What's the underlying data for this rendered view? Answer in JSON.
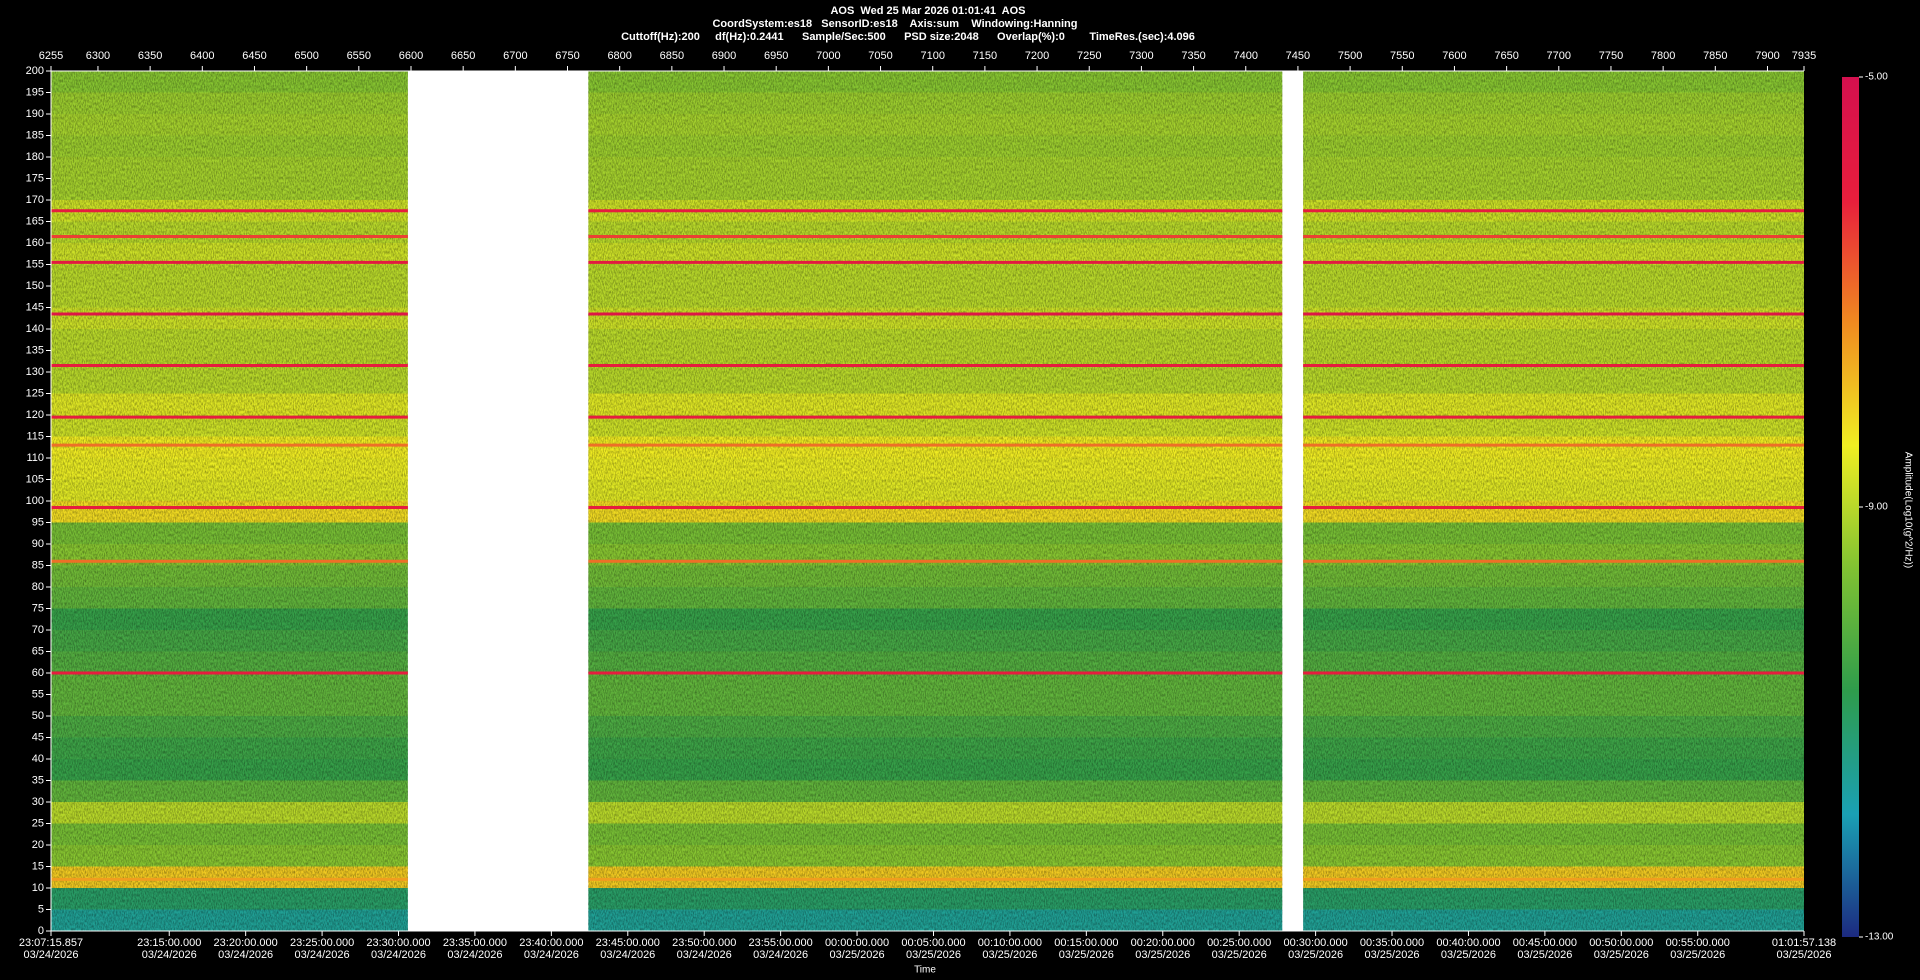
{
  "chart_data": {
    "type": "spectrogram",
    "title": "AOS  Wed 25 Mar 2026 01:01:41  AOS",
    "subtitle_lines": [
      "CoordSystem:es18   SensorID:es18    Axis:sum    Windowing:Hanning",
      "Cuttoff(Hz):200     df(Hz):0.2441      Sample/Sec:500      PSD size:2048      Overlap(%):0        TimeRes.(sec):4.096"
    ],
    "x2_label": "Time",
    "colorbar_label": "Amplitude(Log10(g^2/Hz))",
    "xlim": [
      6255,
      7935
    ],
    "xticks": [
      6255,
      6300,
      6350,
      6400,
      6450,
      6500,
      6550,
      6600,
      6650,
      6700,
      6750,
      6800,
      6850,
      6900,
      6950,
      7000,
      7050,
      7100,
      7150,
      7200,
      7250,
      7300,
      7350,
      7400,
      7450,
      7500,
      7550,
      7600,
      7650,
      7700,
      7750,
      7800,
      7850,
      7900,
      7935
    ],
    "ylim": [
      0,
      200
    ],
    "yticks": [
      0,
      5,
      10,
      15,
      20,
      25,
      30,
      35,
      40,
      45,
      50,
      55,
      60,
      65,
      70,
      75,
      80,
      85,
      90,
      95,
      100,
      105,
      110,
      115,
      120,
      125,
      130,
      135,
      140,
      145,
      150,
      155,
      160,
      165,
      170,
      175,
      180,
      185,
      190,
      195,
      200
    ],
    "time_ticks": [
      {
        "time": "23:07:15.857",
        "date": "03/24/2026"
      },
      {
        "time": "23:15:00.000",
        "date": "03/24/2026"
      },
      {
        "time": "23:20:00.000",
        "date": "03/24/2026"
      },
      {
        "time": "23:25:00.000",
        "date": "03/24/2026"
      },
      {
        "time": "23:30:00.000",
        "date": "03/24/2026"
      },
      {
        "time": "23:35:00.000",
        "date": "03/24/2026"
      },
      {
        "time": "23:40:00.000",
        "date": "03/24/2026"
      },
      {
        "time": "23:45:00.000",
        "date": "03/24/2026"
      },
      {
        "time": "23:50:00.000",
        "date": "03/24/2026"
      },
      {
        "time": "23:55:00.000",
        "date": "03/24/2026"
      },
      {
        "time": "00:00:00.000",
        "date": "03/25/2026"
      },
      {
        "time": "00:05:00.000",
        "date": "03/25/2026"
      },
      {
        "time": "00:10:00.000",
        "date": "03/25/2026"
      },
      {
        "time": "00:15:00.000",
        "date": "03/25/2026"
      },
      {
        "time": "00:20:00.000",
        "date": "03/25/2026"
      },
      {
        "time": "00:25:00.000",
        "date": "03/25/2026"
      },
      {
        "time": "00:30:00.000",
        "date": "03/25/2026"
      },
      {
        "time": "00:35:00.000",
        "date": "03/25/2026"
      },
      {
        "time": "00:40:00.000",
        "date": "03/25/2026"
      },
      {
        "time": "00:45:00.000",
        "date": "03/25/2026"
      },
      {
        "time": "00:50:00.000",
        "date": "03/25/2026"
      },
      {
        "time": "00:55:00.000",
        "date": "03/25/2026"
      },
      {
        "time": "01:01:57.138",
        "date": "03/25/2026"
      }
    ],
    "segments": [
      [
        6255,
        6597
      ],
      [
        6770,
        7435
      ],
      [
        7455,
        7935
      ]
    ],
    "bins": [
      0,
      5,
      10,
      15,
      20,
      25,
      30,
      35,
      40,
      45,
      50,
      55,
      60,
      65,
      70,
      75,
      80,
      85,
      90,
      95,
      100,
      105,
      110,
      115,
      120,
      125,
      130,
      135,
      140,
      145,
      150,
      155,
      160,
      165,
      170,
      175,
      180,
      185,
      190,
      195,
      200
    ],
    "amplitude": [
      -11.5,
      -11,
      -8,
      -9.5,
      -9.7,
      -9,
      -10,
      -10.6,
      -10.5,
      -10.3,
      -10,
      -10,
      -10.2,
      -10.4,
      -10.6,
      -10,
      -9.8,
      -9.5,
      -9.7,
      -8.2,
      -8.6,
      -8.5,
      -8.4,
      -8.8,
      -8.6,
      -9,
      -9,
      -9,
      -8.8,
      -9,
      -9,
      -8.8,
      -9,
      -8.8,
      -9.2,
      -9.2,
      -9.3,
      -9.2,
      -9.3,
      -9.5
    ],
    "line_freqs": [
      12,
      60,
      86,
      98.5,
      113,
      119.5,
      131.5,
      143.5,
      155.5,
      161.5,
      167.5
    ],
    "line_amplitudes": [
      -7.5,
      -6,
      -7,
      -6,
      -7,
      -6,
      -6,
      -5.5,
      -5.8,
      -6.5,
      -6
    ],
    "clim": [
      -13,
      -5
    ],
    "cticks": [
      {
        "value": -13,
        "label": "-13.00"
      },
      {
        "value": -9,
        "label": "-9.00"
      },
      {
        "value": -5,
        "label": "-5.00"
      }
    ],
    "colormap": [
      "#1c2a80",
      "#1aa0b4",
      "#2e9c4c",
      "#80c232",
      "#f0ee22",
      "#f08a20",
      "#e81e3c",
      "#d4104e"
    ]
  }
}
